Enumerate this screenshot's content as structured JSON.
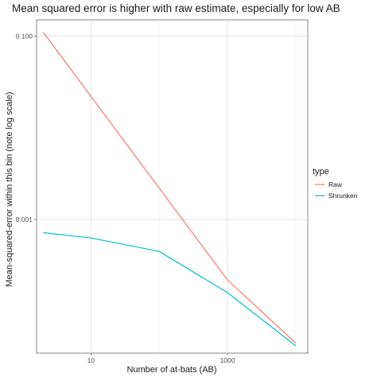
{
  "chart_data": {
    "type": "line",
    "title": "Mean squared error is higher with raw estimate, especially for low AB",
    "xlabel": "Number of at-bats (AB)",
    "ylabel": "Mean-squared-error within this bin (note log scale)",
    "x_scale": "log10",
    "y_scale": "log10",
    "xlim": [
      1.6,
      15000
    ],
    "ylim": [
      3.5e-05,
      0.15
    ],
    "x_ticks": [
      {
        "value": 10,
        "label": "10"
      },
      {
        "value": 1000,
        "label": "1000"
      }
    ],
    "y_ticks": [
      {
        "value": 0.1,
        "label": "0.100"
      },
      {
        "value": 0.001,
        "label": "0.001"
      }
    ],
    "grid": true,
    "legend": {
      "title": "type",
      "position": "right"
    },
    "series": [
      {
        "name": "Raw",
        "color": "#F8766D",
        "x": [
          2,
          10,
          100,
          1000,
          10000
        ],
        "y": [
          0.11,
          0.022,
          0.0022,
          0.00022,
          4.5e-05
        ]
      },
      {
        "name": "Shrunken",
        "color": "#00BFC4",
        "x": [
          2,
          10,
          100,
          1000,
          10000
        ],
        "y": [
          0.00072,
          0.00063,
          0.00045,
          0.00016,
          4.2e-05
        ]
      }
    ]
  }
}
